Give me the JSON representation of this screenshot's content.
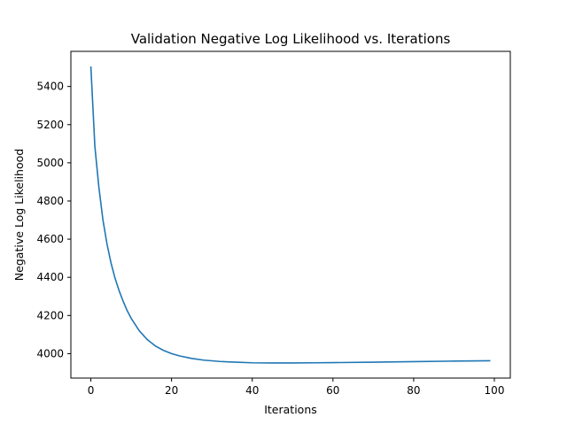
{
  "chart_data": {
    "type": "line",
    "title": "Validation Negative Log Likelihood vs. Iterations",
    "xlabel": "Iterations",
    "ylabel": "Negative Log Likelihood",
    "xlim": [
      -4.95,
      103.95
    ],
    "ylim": [
      3872,
      5584
    ],
    "xticks": [
      0,
      20,
      40,
      60,
      80,
      100
    ],
    "yticks": [
      4000,
      4200,
      4400,
      4600,
      4800,
      5000,
      5200,
      5400
    ],
    "grid": false,
    "legend": "none",
    "series": [
      {
        "color": "#1f77b4",
        "x": [
          0,
          1,
          2,
          3,
          4,
          5,
          6,
          7,
          8,
          9,
          10,
          12,
          14,
          16,
          18,
          20,
          22,
          25,
          28,
          32,
          36,
          40,
          45,
          50,
          55,
          60,
          70,
          80,
          90,
          99
        ],
        "y": [
          5505,
          5085,
          4870,
          4700,
          4575,
          4475,
          4395,
          4330,
          4275,
          4225,
          4185,
          4120,
          4073,
          4040,
          4017,
          4000,
          3988,
          3975,
          3966,
          3959,
          3955,
          3952,
          3951,
          3951,
          3952,
          3953,
          3955,
          3958,
          3961,
          3963
        ]
      }
    ]
  }
}
